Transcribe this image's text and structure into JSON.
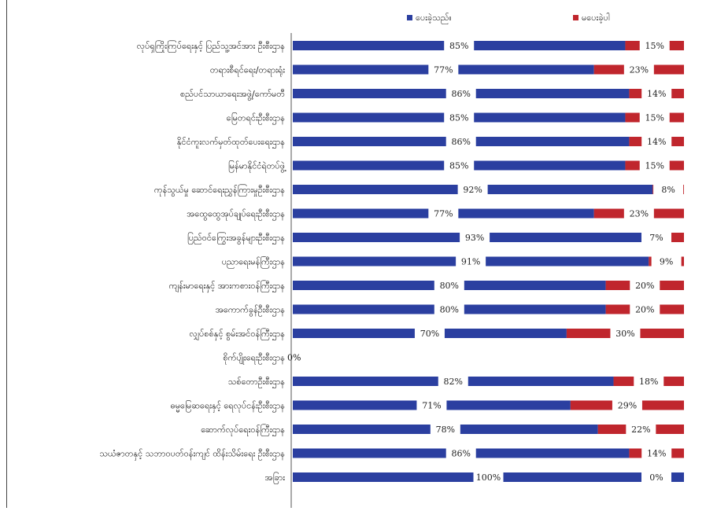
{
  "chart_data": {
    "type": "bar",
    "stacked": "percent",
    "orientation": "horizontal",
    "legend_position": "top",
    "title": "",
    "xlabel": "",
    "ylabel": "",
    "xlim": [
      0,
      100
    ],
    "grid": false,
    "colors": {
      "yes": "#2b3fa0",
      "no": "#c0262d"
    },
    "series": [
      {
        "name": "ပေးခဲ့သည်။",
        "color": "#2b3fa0"
      },
      {
        "name": "မပေးခဲ့ပါ",
        "color": "#c0262d"
      }
    ],
    "rows": [
      {
        "label": "လုပ်ရှကြိုးကြပ်ရေးနှင့် ပြည်သူ့အင်အား ဦးစီးဌာန",
        "yes": 85,
        "no": 15,
        "yes_label": "85%",
        "no_label": "15%"
      },
      {
        "label": "တရားစီရင်ရေး/တရားရုံး",
        "yes": 77,
        "no": 23,
        "yes_label": "77%",
        "no_label": "23%"
      },
      {
        "label": "စည်ပင်သာယာရေးအဖွဲ့/ကော်မတီ",
        "yes": 86,
        "no": 14,
        "yes_label": "86%",
        "no_label": "14%"
      },
      {
        "label": "မြေတရင်းဦးစီးဌာန",
        "yes": 85,
        "no": 15,
        "yes_label": "85%",
        "no_label": "15%"
      },
      {
        "label": "နိုင်ငံကူးလက်မှတ်ထုတ်ပေးရေးဌာန",
        "yes": 86,
        "no": 14,
        "yes_label": "86%",
        "no_label": "14%"
      },
      {
        "label": "မြန်မာနိုင်ငံရဲတပ်ဖွဲ့",
        "yes": 85,
        "no": 15,
        "yes_label": "85%",
        "no_label": "15%"
      },
      {
        "label": "ကုန်သွယ်မှု ဆောင်ရေးညွှန်ကြားမှုဦးစီးဌာန",
        "yes": 92,
        "no": 8,
        "yes_label": "92%",
        "no_label": "8%"
      },
      {
        "label": "အထွေထွေအုပ်ချုပ်ရေးဦးစီးဌာန",
        "yes": 77,
        "no": 23,
        "yes_label": "77%",
        "no_label": "23%"
      },
      {
        "label": "ပြည်ဝင်ကြွေးအခွန်များဦးစီးဌာန",
        "yes": 93,
        "no": 7,
        "yes_label": "93%",
        "no_label": "7%"
      },
      {
        "label": "ပညာရေးမန်ကြီးဌာန",
        "yes": 91,
        "no": 9,
        "yes_label": "91%",
        "no_label": "9%"
      },
      {
        "label": "ကျန်းမာရေးနှင့် အားကစားဝန်ကြီးဌာန",
        "yes": 80,
        "no": 20,
        "yes_label": "80%",
        "no_label": "20%"
      },
      {
        "label": "အကောက်ခွန်ဦးစီးဌာန",
        "yes": 80,
        "no": 20,
        "yes_label": "80%",
        "no_label": "20%"
      },
      {
        "label": "လျှပ်စစ်နှင့် စွမ်းအင်ဝန်ကြီးဌာန",
        "yes": 70,
        "no": 30,
        "yes_label": "70%",
        "no_label": "30%"
      },
      {
        "label": "စိုက်ပျိုးရေးဦးစီးဌာန",
        "yes": 0,
        "no": 0,
        "yes_label": "0%",
        "no_label": ""
      },
      {
        "label": "သစ်တောဦးစီးဌာန",
        "yes": 82,
        "no": 18,
        "yes_label": "82%",
        "no_label": "18%"
      },
      {
        "label": "ဓမ္မမြေဆရေးနှင့် ရေလုပ်ငန်းဦးစီးဌာန",
        "yes": 71,
        "no": 29,
        "yes_label": "71%",
        "no_label": "29%"
      },
      {
        "label": "ဆောက်လုပ်ရေးဝန်ကြီးဌာန",
        "yes": 78,
        "no": 22,
        "yes_label": "78%",
        "no_label": "22%"
      },
      {
        "label": "သယံဇာတနှင့် သဘာဝပတ်ဝန်းကျင် ထိန်းသိမ်းရေး ဦးစီးဌာန",
        "yes": 86,
        "no": 14,
        "yes_label": "86%",
        "no_label": "14%"
      },
      {
        "label": "အခြား",
        "yes": 100,
        "no": 0,
        "yes_label": "100%",
        "no_label": "0%"
      }
    ]
  }
}
